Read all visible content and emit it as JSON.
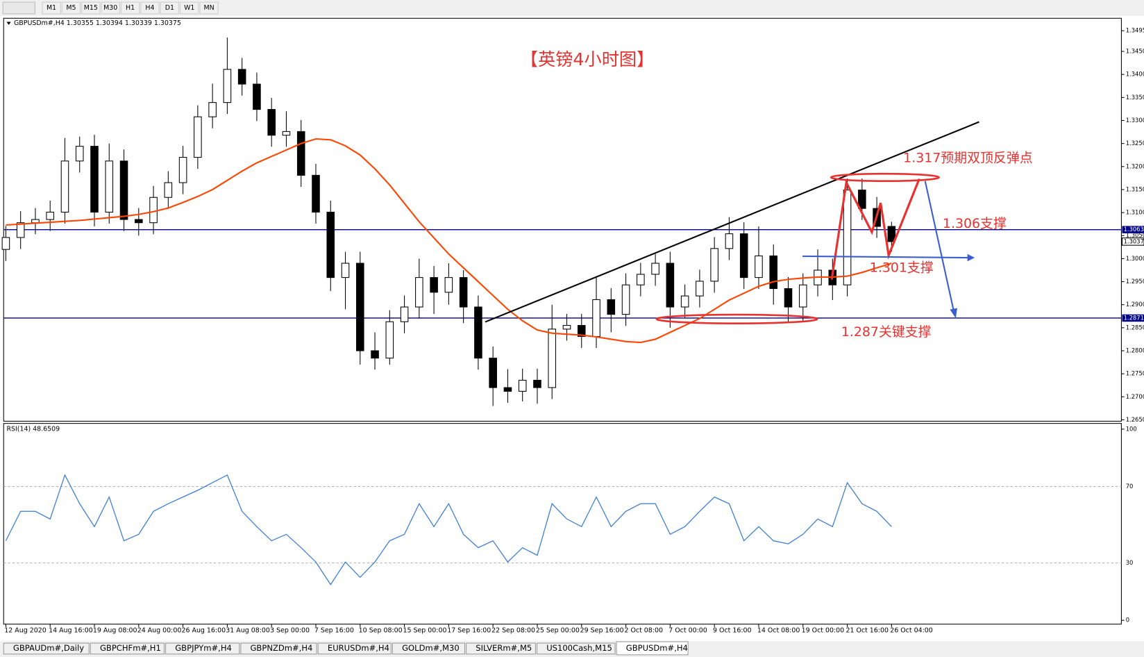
{
  "toolbar": [
    "M1",
    "M5",
    "M15",
    "M30",
    "H1",
    "H4",
    "D1",
    "W1",
    "MN"
  ],
  "tabs": [
    "GBPAUDm#,Daily",
    "GBPCHFm#,H1",
    "GBPJPYm#,H4",
    "GBPNZDm#,H4",
    "EURUSDm#,H4",
    "GOLDm#,M30",
    "SILVERm#,M5",
    "US100Cash,M15",
    "GBPUSDm#,H4"
  ],
  "active_tab": 8,
  "annotations": [
    "【英镑4小时图】",
    "1.317预期双顶反弹点",
    "1.306支撑",
    "1.301支撑",
    "1.287关键支撑"
  ],
  "chart_data": [
    {
      "type": "candlestick",
      "title": "GBPUSDm#,H4  1.30355 1.30394 1.30339 1.30375",
      "categories": [
        "12 Aug 2020",
        null,
        null,
        "14 Aug 16:00",
        null,
        null,
        "19 Aug 08:00",
        null,
        null,
        "24 Aug 00:00",
        null,
        null,
        "26 Aug 16:00",
        null,
        null,
        "31 Aug 08:00",
        null,
        null,
        "3 Sep 00:00",
        null,
        null,
        "7 Sep 16:00",
        null,
        null,
        "10 Sep 08:00",
        null,
        null,
        "15 Sep 00:00",
        null,
        null,
        "17 Sep 16:00",
        null,
        null,
        "22 Sep 08:00",
        null,
        null,
        "25 Sep 00:00",
        null,
        null,
        "29 Sep 16:00",
        null,
        null,
        "2 Oct 08:00",
        null,
        null,
        "7 Oct 00:00",
        null,
        null,
        "9 Oct 16:00",
        null,
        null,
        "14 Oct 08:00",
        null,
        null,
        "19 Oct 00:00",
        null,
        null,
        "21 Oct 16:00",
        null,
        null,
        "26 Oct 04:00"
      ],
      "open": [
        1.302,
        1.3046,
        1.3078,
        1.3085,
        1.3101,
        1.3212,
        1.3244,
        1.3101,
        1.3212,
        1.3085,
        1.3078,
        1.3133,
        1.3165,
        1.322,
        1.3308,
        1.3339,
        1.3411,
        1.3379,
        1.3324,
        1.3268,
        1.3276,
        1.3181,
        1.3101,
        1.2959,
        1.299,
        1.28,
        1.2784,
        1.2863,
        1.2895,
        1.2959,
        1.2927,
        1.2959,
        1.2895,
        1.2784,
        1.272,
        1.2712,
        1.2736,
        1.272,
        1.2847,
        1.2855,
        1.2831,
        1.2911,
        1.2879,
        1.2943,
        1.2966,
        1.299,
        1.2895,
        1.2919,
        1.2951,
        1.3022,
        1.3054,
        1.2959,
        1.3006,
        1.2935,
        1.2895,
        1.2943,
        1.2975,
        1.2943,
        1.3149,
        1.3109,
        1.307
      ],
      "high": [
        1.3071,
        1.3103,
        1.311,
        1.3126,
        1.3262,
        1.3265,
        1.3269,
        1.325,
        1.3237,
        1.311,
        1.3158,
        1.319,
        1.3245,
        1.3333,
        1.338,
        1.348,
        1.3436,
        1.3404,
        1.3349,
        1.332,
        1.3301,
        1.3206,
        1.3126,
        1.3015,
        1.3015,
        1.284,
        1.2888,
        1.292,
        1.3,
        1.2984,
        1.299,
        1.2975,
        1.292,
        1.2809,
        1.276,
        1.2761,
        1.2761,
        1.29,
        1.288,
        1.288,
        1.296,
        1.2936,
        1.2968,
        1.2991,
        1.301,
        1.3015,
        1.2944,
        1.2976,
        1.3047,
        1.309,
        1.3079,
        1.307,
        1.3031,
        1.296,
        1.2968,
        1.302,
        1.3,
        1.3174,
        1.3174,
        1.3134,
        1.308
      ],
      "low": [
        1.2995,
        1.3021,
        1.3053,
        1.306,
        1.3076,
        1.3187,
        1.307,
        1.3076,
        1.306,
        1.305,
        1.3053,
        1.3108,
        1.314,
        1.3195,
        1.3283,
        1.3314,
        1.3354,
        1.3299,
        1.3243,
        1.3243,
        1.3156,
        1.3076,
        1.293,
        1.289,
        1.277,
        1.2759,
        1.277,
        1.2838,
        1.287,
        1.288,
        1.29,
        1.286,
        1.2759,
        1.268,
        1.2687,
        1.269,
        1.2685,
        1.2695,
        1.2822,
        1.2806,
        1.2806,
        1.284,
        1.2854,
        1.2918,
        1.2941,
        1.285,
        1.287,
        1.2894,
        1.2926,
        1.2997,
        1.2934,
        1.2934,
        1.29,
        1.286,
        1.2865,
        1.2918,
        1.291,
        1.2918,
        1.3084,
        1.3045,
        1.3015
      ],
      "close": [
        1.3046,
        1.3078,
        1.3085,
        1.3101,
        1.3212,
        1.3244,
        1.3101,
        1.3212,
        1.3085,
        1.3078,
        1.3133,
        1.3165,
        1.322,
        1.3308,
        1.3339,
        1.3411,
        1.3379,
        1.3324,
        1.3268,
        1.3276,
        1.3181,
        1.3101,
        1.2959,
        1.299,
        1.28,
        1.2784,
        1.2863,
        1.2895,
        1.2959,
        1.2927,
        1.2959,
        1.2895,
        1.2784,
        1.272,
        1.2712,
        1.2736,
        1.272,
        1.2847,
        1.2855,
        1.2831,
        1.2911,
        1.2879,
        1.2943,
        1.2966,
        1.299,
        1.2895,
        1.2919,
        1.2951,
        1.3022,
        1.3054,
        1.2959,
        1.3006,
        1.2935,
        1.2895,
        1.2943,
        1.2975,
        1.2943,
        1.3149,
        1.3109,
        1.307,
        1.3037
      ],
      "up_color": "#ffffff",
      "down_color": "#000000",
      "wick_color": "#000000",
      "overlay": {
        "color": "#ff4500",
        "values": [
          1.3073,
          1.3075,
          1.3077,
          1.3079,
          1.3081,
          1.3083,
          1.3086,
          1.3089,
          1.3092,
          1.3096,
          1.3102,
          1.311,
          1.3122,
          1.3135,
          1.315,
          1.317,
          1.319,
          1.3208,
          1.3222,
          1.3236,
          1.325,
          1.326,
          1.3258,
          1.3245,
          1.3225,
          1.3195,
          1.316,
          1.312,
          1.308,
          1.3045,
          1.301,
          1.298,
          1.295,
          1.292,
          1.289,
          1.2865,
          1.2845,
          1.2838,
          1.2836,
          1.2834,
          1.283,
          1.2825,
          1.282,
          1.2818,
          1.2825,
          1.284,
          1.2855,
          1.287,
          1.289,
          1.291,
          1.2925,
          1.294,
          1.295,
          1.2955,
          1.2958,
          1.296,
          1.296,
          1.2962,
          1.297,
          1.298,
          1.299
        ]
      },
      "hlines": [
        {
          "value": 1.3063,
          "label": "1.3063"
        },
        {
          "value": 1.2871,
          "label": "1.2871"
        }
      ],
      "hline_color": "#00008b",
      "last_price": {
        "value": 1.3037,
        "label": "1.3037"
      },
      "ylim": [
        1.2647,
        1.3522
      ],
      "yticks": [
        1.3495,
        {
          "value": 1.345,
          "label": "1.3450"
        },
        {
          "value": 1.34,
          "label": "1.3400"
        },
        {
          "value": 1.335,
          "label": "1.3350"
        },
        {
          "value": 1.33,
          "label": "1.3300"
        },
        {
          "value": 1.325,
          "label": "1.3250"
        },
        {
          "value": 1.32,
          "label": "1.3200"
        },
        {
          "value": 1.315,
          "label": "1.3150"
        },
        {
          "value": 1.31,
          "label": "1.3100"
        },
        {
          "value": 1.305,
          "label": "1.3050"
        },
        {
          "value": 1.3,
          "label": "1.3000"
        },
        {
          "value": 1.295,
          "label": "1.2950"
        },
        {
          "value": 1.29,
          "label": "1.2900"
        },
        {
          "value": 1.285,
          "label": "1.2850"
        },
        {
          "value": 1.28,
          "label": "1.2800"
        },
        {
          "value": 1.275,
          "label": "1.2750"
        },
        {
          "value": 1.27,
          "label": "1.2700"
        },
        {
          "value": 1.265,
          "label": "1.2650"
        }
      ]
    },
    {
      "type": "line",
      "title": "RSI(14) 48.6509",
      "color": "#3a7bd5",
      "values": [
        41.6,
        57,
        57,
        53,
        76,
        61,
        49,
        64.5,
        41.6,
        45,
        57,
        61,
        64.5,
        68,
        72,
        76,
        57,
        49,
        41.6,
        45,
        38,
        30.5,
        18.7,
        30.5,
        22.5,
        30.5,
        41.6,
        45,
        61,
        49,
        61,
        45,
        38,
        41.6,
        30.5,
        38,
        34,
        61,
        53,
        49,
        64.5,
        49,
        57,
        61,
        61,
        45,
        49,
        57,
        64.5,
        61,
        41.6,
        49,
        41.6,
        40,
        45,
        53,
        49,
        72,
        61,
        57,
        49
      ],
      "ylim": [
        -2,
        103
      ],
      "yticks": [
        100,
        70,
        30,
        0
      ]
    }
  ]
}
